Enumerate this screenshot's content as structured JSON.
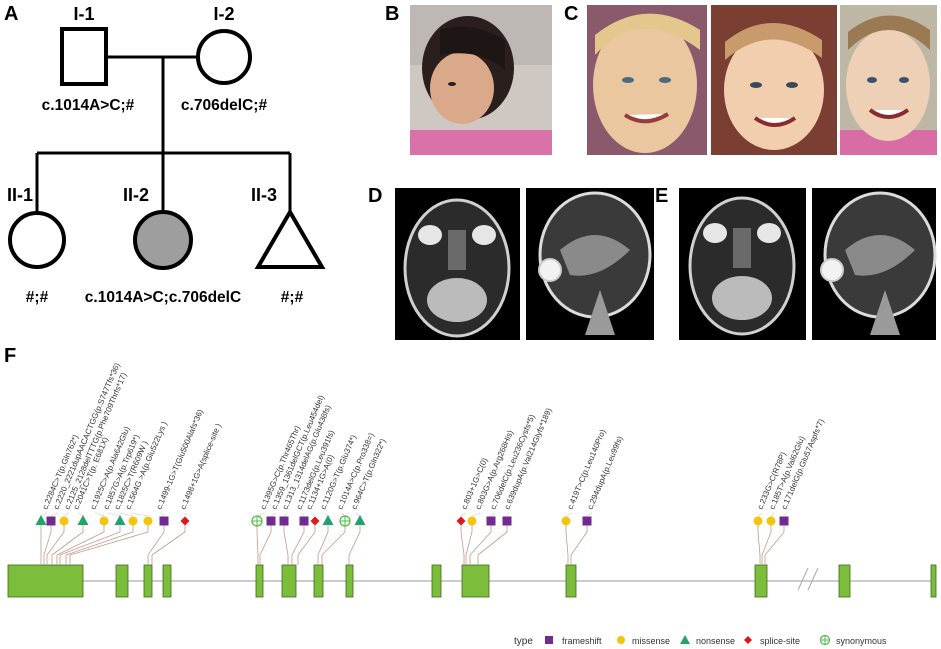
{
  "panels": {
    "a": "A",
    "b": "B",
    "c": "C",
    "d": "D",
    "e": "E",
    "f": "F"
  },
  "pedigree": {
    "I1": {
      "label": "I-1",
      "genotype": "c.1014A>C;#"
    },
    "I2": {
      "label": "I-2",
      "genotype": "c.706delC;#"
    },
    "II1": {
      "label": "II-1",
      "genotype": "#;#"
    },
    "II2": {
      "label": "II-2",
      "genotype": "c.1014A>C;c.706delC"
    },
    "II3": {
      "label": "II-3",
      "genotype": "#;#"
    }
  },
  "colors": {
    "exon": "#7dbd3c",
    "frameshift": "#6f2b8f",
    "missense": "#f5c40f",
    "nonsense": "#21a36b",
    "splice_site": "#e0161a",
    "synonymous": "#51b848"
  },
  "variants": [
    {
      "label": "c.2284C>T(p.Gln762*)",
      "type": "nonsense"
    },
    {
      "label": "c.2220_2221dupAACACTGG(p.S747Tfs*36)",
      "type": "frameshift"
    },
    {
      "label": "c.2125_2128delTTTG(p.Phe709Thrfs*17)",
      "type": "missense"
    },
    {
      "label": "c.2041C>T(p. E681X)",
      "type": "nonsense"
    },
    {
      "label": "c.1925C>A(p.Ala642Glu)",
      "type": "missense"
    },
    {
      "label": "c.1857G>A(p.Trp619*)",
      "type": "nonsense"
    },
    {
      "label": "c.1825C>T(R609W )",
      "type": "missense"
    },
    {
      "label": "c.1564G >A(p.Glu522Lys )",
      "type": "missense"
    },
    {
      "label": "c.1499-1G>T(Glu500Alafs*36)",
      "type": "frameshift"
    },
    {
      "label": "c.1498+1G>A(splice-site )",
      "type": "splice_site"
    },
    {
      "label": "c.1395G>C(p.Thr465Thr)",
      "type": "synonymous"
    },
    {
      "label": "c.1359_1361delGCT(p.Leu454del)",
      "type": "frameshift"
    },
    {
      "label": "c.1313_1314delAG(p.Glu438fs)",
      "type": "frameshift"
    },
    {
      "label": "c.1173delG(p.Leu391fs)",
      "type": "frameshift"
    },
    {
      "label": "c.1134+1G>A(0)",
      "type": "splice_site"
    },
    {
      "label": "c.1120G>T(p.Glu374*)",
      "type": "nonsense"
    },
    {
      "label": "c.1014A>C(p.Pro338=)",
      "type": "synonymous"
    },
    {
      "label": "c.964C>T(p.Gln322*)",
      "type": "nonsense"
    },
    {
      "label": "c.803+1G>C(0)",
      "type": "splice_site"
    },
    {
      "label": "c.803G>A(p.Arg268His)",
      "type": "missense"
    },
    {
      "label": "c.706delC(p.Leu236Cysfs*5)",
      "type": "frameshift"
    },
    {
      "label": "c.639dupA(p.Val214Glyfs*189)",
      "type": "frameshift"
    },
    {
      "label": "c.419T>C(p.Leu140Pro)",
      "type": "missense"
    },
    {
      "label": "c.294dupA(p.Leu99fs)",
      "type": "frameshift"
    },
    {
      "label": "c.233G>C(R78P)",
      "type": "missense"
    },
    {
      "label": "c.185T>A(p.Val62Glu)",
      "type": "missense"
    },
    {
      "label": "c.171delG(p.Glu57Aspfs*7)",
      "type": "frameshift"
    }
  ],
  "legend": {
    "title": "type",
    "items": [
      {
        "key": "frameshift",
        "label": "frameshift"
      },
      {
        "key": "missense",
        "label": "missense"
      },
      {
        "key": "nonsense",
        "label": "nonsense"
      },
      {
        "key": "splice_site",
        "label": "splice-site"
      },
      {
        "key": "synonymous",
        "label": "synonymous"
      }
    ]
  }
}
